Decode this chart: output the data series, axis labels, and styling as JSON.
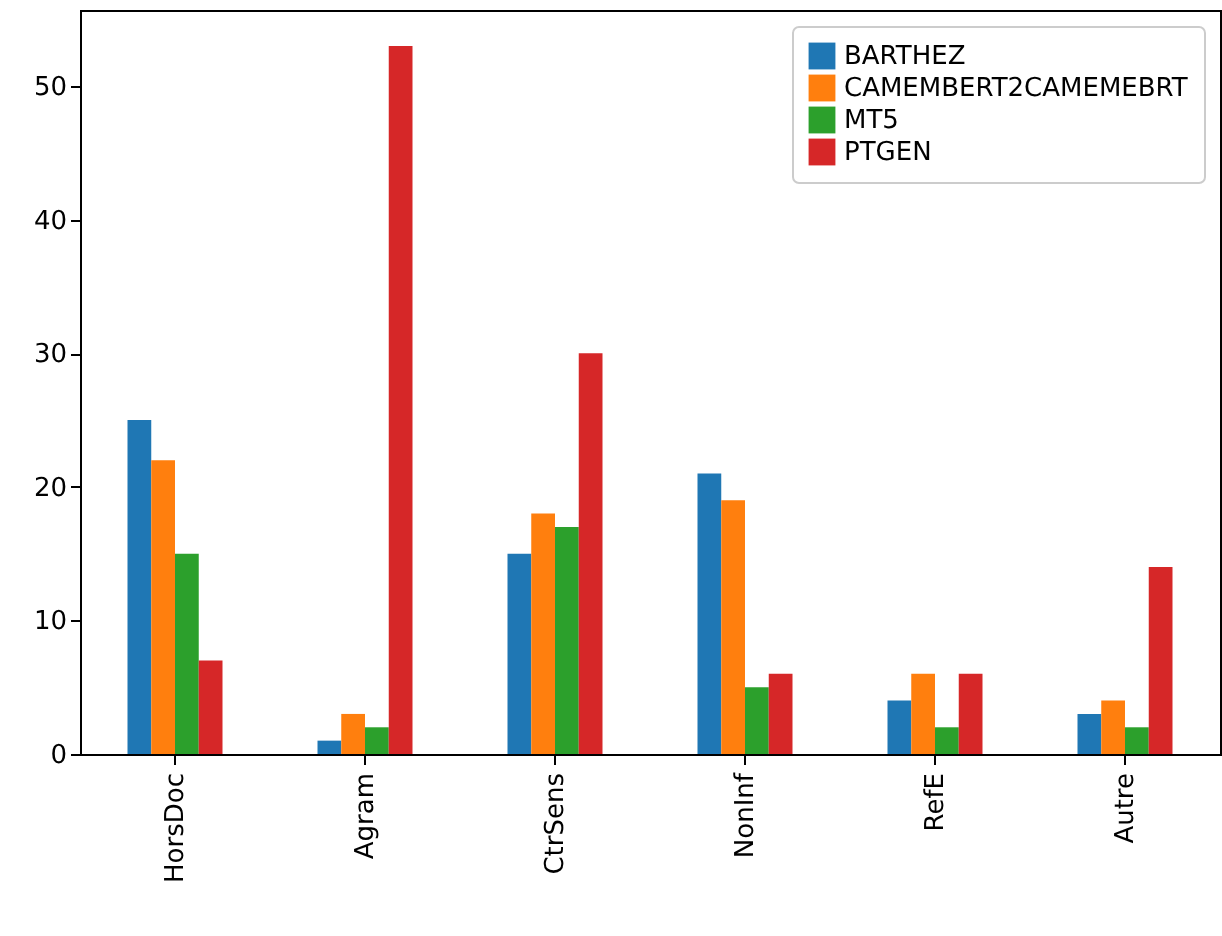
{
  "chart_data": {
    "type": "bar",
    "categories": [
      "HorsDoc",
      "Agram",
      "CtrSens",
      "NonInf",
      "RefE",
      "Autre"
    ],
    "series": [
      {
        "name": "BARTHEZ",
        "color": "#1f77b4",
        "values": [
          25,
          1,
          15,
          21,
          4,
          3
        ]
      },
      {
        "name": "CAMEMBERT2CAMEMEBRT",
        "color": "#ff7f0e",
        "values": [
          22,
          3,
          18,
          19,
          6,
          4
        ]
      },
      {
        "name": "MT5",
        "color": "#2ca02c",
        "values": [
          15,
          2,
          17,
          5,
          2,
          2
        ]
      },
      {
        "name": "PTGEN",
        "color": "#d62728",
        "values": [
          7,
          53,
          30,
          6,
          6,
          14
        ]
      }
    ],
    "ylim": [
      0,
      55.7
    ],
    "yticks": [
      0,
      10,
      20,
      30,
      40,
      50
    ],
    "legend": "top right",
    "grid": false
  }
}
